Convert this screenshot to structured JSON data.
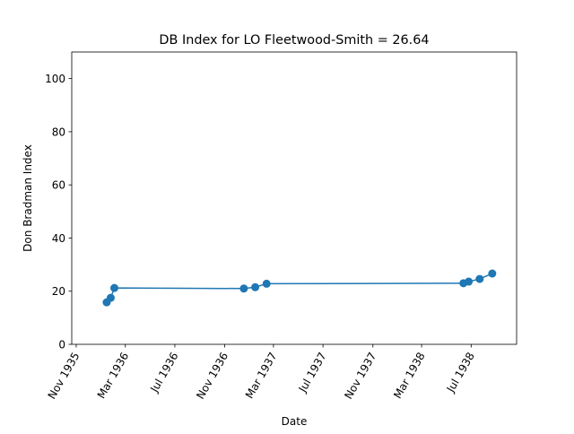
{
  "chart_data": {
    "type": "line",
    "title": "DB Index for LO Fleetwood-Smith = 26.64",
    "xlabel": "Date",
    "ylabel": "Don Bradman Index",
    "ylim": [
      0,
      110
    ],
    "xlim": [
      "1935-10-21",
      "1938-10-21"
    ],
    "yticks": [
      0,
      20,
      40,
      60,
      80,
      100
    ],
    "xticks": [
      {
        "date": "1935-11-01",
        "label": "Nov 1935"
      },
      {
        "date": "1936-03-01",
        "label": "Mar 1936"
      },
      {
        "date": "1936-07-01",
        "label": "Jul 1936"
      },
      {
        "date": "1936-11-01",
        "label": "Nov 1936"
      },
      {
        "date": "1937-03-01",
        "label": "Mar 1937"
      },
      {
        "date": "1937-07-01",
        "label": "Jul 1937"
      },
      {
        "date": "1937-11-01",
        "label": "Nov 1937"
      },
      {
        "date": "1938-03-01",
        "label": "Mar 1938"
      },
      {
        "date": "1938-07-01",
        "label": "Jul 1938"
      }
    ],
    "grid": false,
    "color": "#1f77b4",
    "series": [
      {
        "points": [
          {
            "x": "1936-01-15",
            "y": 15.8
          },
          {
            "x": "1936-01-25",
            "y": 17.5
          },
          {
            "x": "1936-02-03",
            "y": 21.2
          },
          {
            "x": "1936-12-18",
            "y": 21.0
          },
          {
            "x": "1937-01-15",
            "y": 21.5
          },
          {
            "x": "1937-02-12",
            "y": 22.8
          },
          {
            "x": "1938-06-12",
            "y": 23.0
          },
          {
            "x": "1938-06-25",
            "y": 23.6
          },
          {
            "x": "1938-07-22",
            "y": 24.6
          },
          {
            "x": "1938-08-22",
            "y": 26.64
          }
        ]
      }
    ]
  }
}
